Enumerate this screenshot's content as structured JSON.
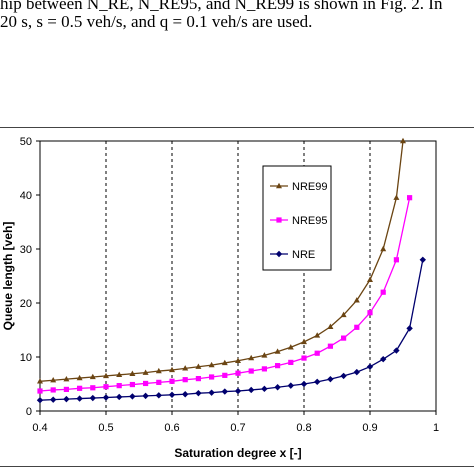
{
  "text_above": {
    "line1": "hip between N_RE, N_RE95, and N_RE99 is shown in Fig. 2. In",
    "line2": "20 s, s = 0.5 veh/s, and q = 0.1 veh/s are used."
  },
  "chart_data": {
    "type": "line",
    "xlabel": "Saturation degree x [-]",
    "ylabel": "Queue length [veh]",
    "xlim": [
      0.4,
      1.0
    ],
    "ylim": [
      0,
      50
    ],
    "xticks": [
      "0.4",
      "0.5",
      "0.6",
      "0.7",
      "0.8",
      "0.9",
      "1"
    ],
    "yticks": [
      "0",
      "10",
      "20",
      "30",
      "40",
      "50"
    ],
    "grid": "vertical dashed at x ticks",
    "legend_placement": "upper-right inside plot",
    "series": [
      {
        "name": "NRE99",
        "color": "#6b4513",
        "marker": "triangle",
        "x": [
          0.4,
          0.42,
          0.44,
          0.46,
          0.48,
          0.5,
          0.52,
          0.54,
          0.56,
          0.58,
          0.6,
          0.62,
          0.64,
          0.66,
          0.68,
          0.7,
          0.72,
          0.74,
          0.76,
          0.78,
          0.8,
          0.82,
          0.84,
          0.86,
          0.88,
          0.9,
          0.92,
          0.94,
          0.95
        ],
        "y": [
          5.5,
          5.7,
          5.9,
          6.1,
          6.3,
          6.5,
          6.7,
          6.9,
          7.1,
          7.4,
          7.6,
          7.9,
          8.2,
          8.5,
          8.9,
          9.3,
          9.8,
          10.3,
          11.0,
          11.8,
          12.8,
          14.0,
          15.6,
          17.8,
          20.5,
          24.3,
          30.0,
          39.5,
          50.0
        ]
      },
      {
        "name": "NRE95",
        "color": "#ff00ff",
        "marker": "square",
        "x": [
          0.4,
          0.42,
          0.44,
          0.46,
          0.48,
          0.5,
          0.52,
          0.54,
          0.56,
          0.58,
          0.6,
          0.62,
          0.64,
          0.66,
          0.68,
          0.7,
          0.72,
          0.74,
          0.76,
          0.78,
          0.8,
          0.82,
          0.84,
          0.86,
          0.88,
          0.9,
          0.92,
          0.94,
          0.96
        ],
        "y": [
          3.7,
          3.9,
          4.0,
          4.2,
          4.3,
          4.5,
          4.7,
          4.9,
          5.1,
          5.3,
          5.5,
          5.8,
          6.0,
          6.3,
          6.6,
          7.0,
          7.4,
          7.8,
          8.4,
          9.0,
          9.8,
          10.7,
          12.0,
          13.5,
          15.5,
          18.2,
          22.0,
          28.0,
          39.5
        ]
      },
      {
        "name": "NRE",
        "color": "#00006e",
        "marker": "diamond",
        "x": [
          0.4,
          0.42,
          0.44,
          0.46,
          0.48,
          0.5,
          0.52,
          0.54,
          0.56,
          0.58,
          0.6,
          0.62,
          0.64,
          0.66,
          0.68,
          0.7,
          0.72,
          0.74,
          0.76,
          0.78,
          0.8,
          0.82,
          0.84,
          0.86,
          0.88,
          0.9,
          0.92,
          0.94,
          0.96,
          0.98
        ],
        "y": [
          2.0,
          2.1,
          2.2,
          2.3,
          2.4,
          2.5,
          2.6,
          2.7,
          2.8,
          2.9,
          3.0,
          3.1,
          3.3,
          3.4,
          3.6,
          3.7,
          3.9,
          4.1,
          4.4,
          4.7,
          5.0,
          5.4,
          5.9,
          6.5,
          7.2,
          8.2,
          9.6,
          11.2,
          15.3,
          28.0
        ]
      }
    ]
  }
}
